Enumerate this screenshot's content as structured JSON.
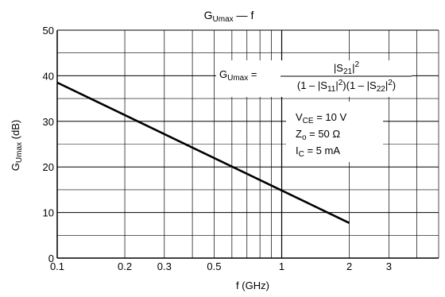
{
  "chart_data": {
    "type": "line",
    "title": {
      "main": "G",
      "sub": "Umax",
      "rest": " — f"
    },
    "xlabel": "f (GHz)",
    "ylabel": {
      "main": "G",
      "sub": "Umax",
      "rest": " (dB)"
    },
    "x_scale": "log",
    "xlim": [
      0.1,
      5
    ],
    "ylim": [
      0,
      50
    ],
    "x_ticks": [
      {
        "value": 0.1,
        "label": "0.1"
      },
      {
        "value": 0.2,
        "label": "0.2"
      },
      {
        "value": 0.3,
        "label": "0.3"
      },
      {
        "value": 0.5,
        "label": "0.5"
      },
      {
        "value": 1,
        "label": "1"
      },
      {
        "value": 2,
        "label": "2"
      },
      {
        "value": 3,
        "label": "3"
      }
    ],
    "x_gridlines": [
      0.1,
      0.2,
      0.3,
      0.4,
      0.5,
      0.6,
      0.7,
      0.8,
      0.9,
      1,
      2,
      3,
      4,
      5
    ],
    "y_ticks": [
      {
        "value": 0,
        "label": "0"
      },
      {
        "value": 10,
        "label": "10"
      },
      {
        "value": 20,
        "label": "20"
      },
      {
        "value": 30,
        "label": "30"
      },
      {
        "value": 40,
        "label": "40"
      },
      {
        "value": 50,
        "label": "50"
      }
    ],
    "y_minor_step": 5,
    "grid": true,
    "series": [
      {
        "x": [
          0.1,
          2
        ],
        "y": [
          38.5,
          7.7
        ]
      }
    ],
    "annotations": {
      "formula": {
        "lhs_main": "G",
        "lhs_sub": "Umax",
        "eq": " =",
        "num_pre": "|S",
        "num_sub": "21",
        "num_post": "|",
        "num_sup": "2",
        "den_1": "(1 – |S",
        "den_1_sub": "11",
        "den_1_post": "|",
        "den_1_sup": "2",
        "den_1_close": ")",
        "den_2": "(1 – |S",
        "den_2_sub": "22",
        "den_2_post": "|",
        "den_2_sup": "2",
        "den_2_close": ")"
      },
      "conditions": [
        {
          "main": "V",
          "sub": "CE",
          "rest": " = 10 V"
        },
        {
          "main": "Z",
          "sub": "o",
          "rest": " = 50 Ω"
        },
        {
          "main": "I",
          "sub": "C",
          "rest": " = 5 mA"
        }
      ]
    }
  }
}
